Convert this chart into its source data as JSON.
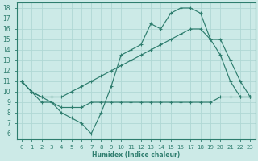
{
  "xlabel": "Humidex (Indice chaleur)",
  "bg_color": "#cceae7",
  "grid_color": "#b0d8d4",
  "line_color": "#2e7d6e",
  "xlim": [
    -0.5,
    23.5
  ],
  "ylim": [
    5.5,
    18.5
  ],
  "xticks": [
    0,
    1,
    2,
    3,
    4,
    5,
    6,
    7,
    8,
    9,
    10,
    11,
    12,
    13,
    14,
    15,
    16,
    17,
    18,
    19,
    20,
    21,
    22,
    23
  ],
  "yticks": [
    6,
    7,
    8,
    9,
    10,
    11,
    12,
    13,
    14,
    15,
    16,
    17,
    18
  ],
  "line1_x": [
    0,
    1,
    2,
    3,
    4,
    5,
    6,
    7,
    8,
    9,
    10,
    11,
    12,
    13,
    14,
    15,
    16,
    17,
    18,
    19,
    20,
    21,
    22,
    23
  ],
  "line1_y": [
    11,
    10,
    9.5,
    9,
    8,
    7.5,
    7,
    6,
    8,
    10.5,
    13.5,
    14,
    14.5,
    16.5,
    16,
    17.5,
    18,
    18,
    17.5,
    15,
    13.5,
    11,
    9.5,
    9.5
  ],
  "line2_x": [
    0,
    1,
    2,
    3,
    4,
    5,
    6,
    7,
    8,
    9,
    10,
    11,
    12,
    13,
    14,
    15,
    16,
    17,
    18,
    19,
    20,
    21,
    22,
    23
  ],
  "line2_y": [
    11,
    10,
    9.5,
    9.5,
    9.5,
    10,
    10.5,
    11,
    11.5,
    12,
    12.5,
    13,
    13.5,
    14,
    14.5,
    15,
    15.5,
    16,
    16,
    15,
    15,
    13,
    11,
    9.5
  ],
  "line3_x": [
    0,
    1,
    2,
    3,
    4,
    5,
    6,
    7,
    8,
    9,
    10,
    11,
    12,
    13,
    14,
    15,
    16,
    17,
    18,
    19,
    20,
    21,
    22,
    23
  ],
  "line3_y": [
    11,
    10,
    9.0,
    9.0,
    8.5,
    8.5,
    8.5,
    9.0,
    9.0,
    9.0,
    9.0,
    9.0,
    9.0,
    9.0,
    9.0,
    9.0,
    9.0,
    9.0,
    9.0,
    9.0,
    9.5,
    9.5,
    9.5,
    9.5
  ]
}
